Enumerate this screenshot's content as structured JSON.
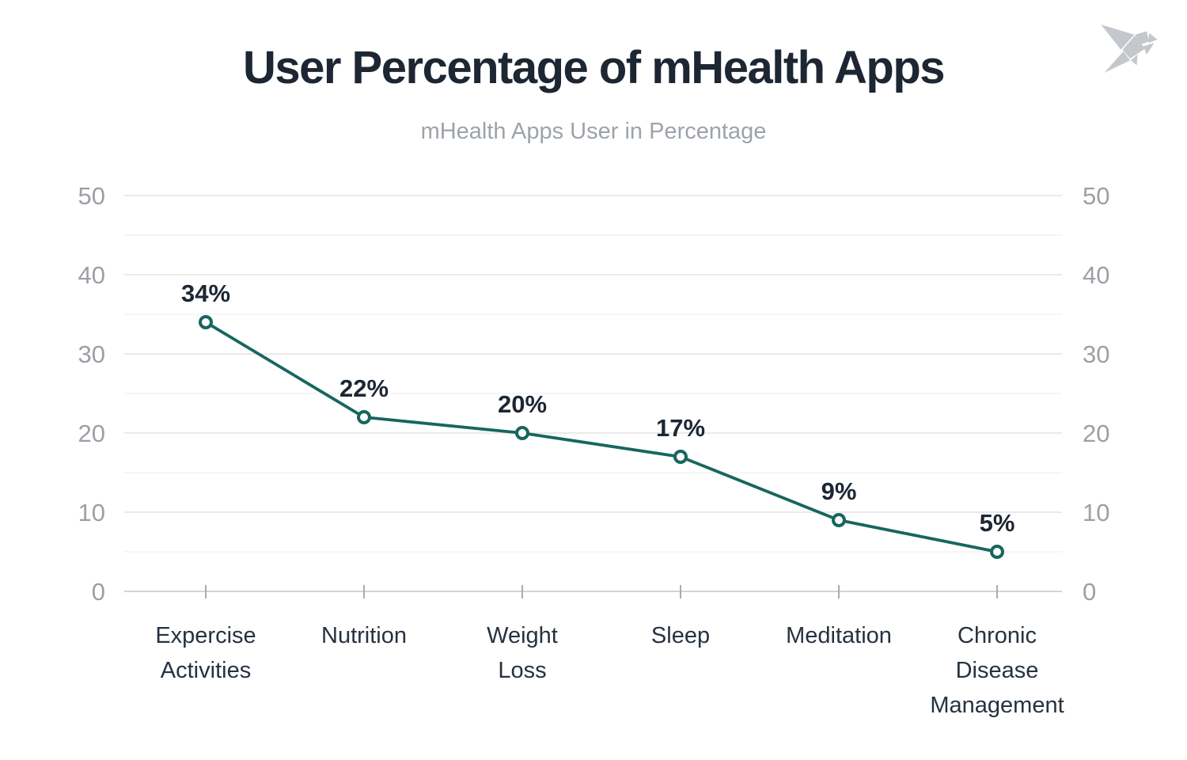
{
  "header": {
    "title": "User Percentage of mHealth Apps",
    "subtitle": "mHealth Apps User in Percentage",
    "logo_icon": "origami-bird-icon"
  },
  "chart_data": {
    "type": "line",
    "title": "User Percentage of mHealth Apps",
    "subtitle": "mHealth Apps User in Percentage",
    "categories": [
      "Expercise Activities",
      "Nutrition",
      "Weight Loss",
      "Sleep",
      "Meditation",
      "Chronic Disease Management"
    ],
    "category_lines": [
      [
        "Expercise",
        "Activities"
      ],
      [
        "Nutrition"
      ],
      [
        "Weight",
        "Loss"
      ],
      [
        "Sleep"
      ],
      [
        "Meditation"
      ],
      [
        "Chronic",
        "Disease",
        "Management"
      ]
    ],
    "values": [
      34,
      22,
      20,
      17,
      9,
      5
    ],
    "data_labels": [
      "34%",
      "22%",
      "20%",
      "17%",
      "9%",
      "5%"
    ],
    "ylim": [
      0,
      50
    ],
    "y_ticks": [
      0,
      10,
      20,
      30,
      40,
      50
    ],
    "y_major_step": 10,
    "y_minor_step": 5,
    "axes": {
      "left_labels": true,
      "right_labels": true
    },
    "grid": true,
    "legend": false,
    "marker_style": "open-circle",
    "colors": {
      "line": "#17665f",
      "marker_fill": "#ffffff",
      "marker_stroke": "#17665f",
      "value_label": "#1c2733",
      "axis_label": "#9ca0a5",
      "category_label": "#26323f",
      "gridline_major": "#e4e4e6",
      "gridline_minor": "#f0f0f1",
      "zero_line": "#d2d4d6",
      "x_tick": "#a9acaf",
      "title": "#1d2733",
      "subtitle": "#9da3aa",
      "logo": "#c4c8cc"
    }
  }
}
